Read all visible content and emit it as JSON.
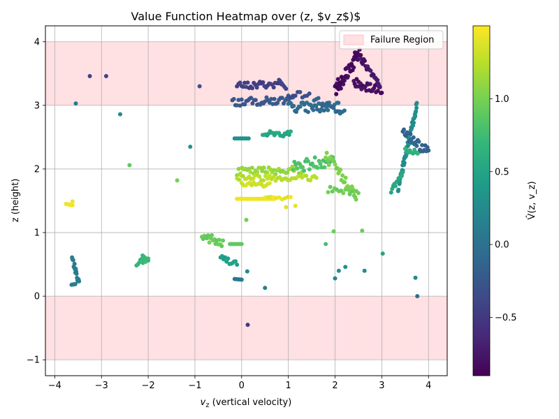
{
  "chart_data": {
    "type": "scatter",
    "title": "Value Function Heatmap over (z, $v_z$)$",
    "xlabel": "$v_z$ (vertical velocity)",
    "xlabel_display": {
      "italic": "v",
      "sub": "z",
      "rest": " (vertical velocity)"
    },
    "ylabel": "z (height)",
    "colorbar_label": "V̂(z, v_z)",
    "xlim": [
      -4.2,
      4.4
    ],
    "ylim": [
      -1.25,
      4.25
    ],
    "xticks": [
      -4,
      -3,
      -2,
      -1,
      0,
      1,
      2,
      3,
      4
    ],
    "xtick_labels": [
      "−4",
      "−3",
      "−2",
      "−1",
      "0",
      "1",
      "2",
      "3",
      "4"
    ],
    "yticks": [
      -1,
      0,
      1,
      2,
      3,
      4
    ],
    "ytick_labels": [
      "−1",
      "0",
      "1",
      "2",
      "3",
      "4"
    ],
    "grid": true,
    "colormap": "viridis",
    "clim": [
      -0.9,
      1.5
    ],
    "colorbar_ticks": [
      -0.5,
      0.0,
      0.5,
      1.0
    ],
    "colorbar_tick_labels": [
      "−0.5",
      "0.0",
      "0.5",
      "1.0"
    ],
    "legend": {
      "placement": "upper right",
      "entries": [
        "Failure Region"
      ]
    },
    "failure_regions": [
      {
        "z_min": 3.0,
        "z_max": 4.0,
        "color": "#ffe0e3"
      },
      {
        "z_min": -1.0,
        "z_max": 0.0,
        "color": "#ffe0e3"
      }
    ],
    "clusters": [
      {
        "shape": "seg",
        "from": [
          -3.76,
          1.45
        ],
        "to": [
          -3.62,
          1.43
        ],
        "n": 10,
        "v": 1.45
      },
      {
        "shape": "pt",
        "at": [
          -3.62,
          1.49
        ],
        "v": 1.45
      },
      {
        "shape": "seg",
        "from": [
          -3.63,
          0.6
        ],
        "to": [
          -3.48,
          0.2
        ],
        "n": 18,
        "w": 0.05,
        "v": 0.12
      },
      {
        "shape": "seg",
        "from": [
          -3.64,
          0.18
        ],
        "to": [
          -3.56,
          0.19
        ],
        "n": 5,
        "v": 0.15
      },
      {
        "shape": "pt",
        "at": [
          -3.55,
          3.03
        ],
        "v": 0.1
      },
      {
        "shape": "pt",
        "at": [
          -3.25,
          3.46
        ],
        "v": -0.42
      },
      {
        "shape": "pt",
        "at": [
          -2.9,
          3.46
        ],
        "v": -0.42
      },
      {
        "shape": "pt",
        "at": [
          -2.6,
          2.86
        ],
        "v": 0.22
      },
      {
        "shape": "pt",
        "at": [
          -2.4,
          2.06
        ],
        "v": 0.9
      },
      {
        "shape": "seg",
        "from": [
          -2.25,
          0.53
        ],
        "to": [
          -2.0,
          0.57
        ],
        "n": 10,
        "w": 0.05,
        "v": 0.7
      },
      {
        "shape": "seg",
        "from": [
          -2.12,
          0.64
        ],
        "to": [
          -2.0,
          0.56
        ],
        "n": 5,
        "v": 0.72
      },
      {
        "shape": "pt",
        "at": [
          -1.38,
          1.82
        ],
        "v": 1.0
      },
      {
        "shape": "pt",
        "at": [
          -1.1,
          2.35
        ],
        "v": 0.35
      },
      {
        "shape": "pt",
        "at": [
          -0.9,
          3.3
        ],
        "v": -0.3
      },
      {
        "shape": "seg",
        "from": [
          -0.85,
          0.95
        ],
        "to": [
          -0.4,
          0.82
        ],
        "n": 18,
        "w": 0.08,
        "v": 0.95
      },
      {
        "shape": "seg",
        "from": [
          -0.25,
          0.82
        ],
        "to": [
          0.0,
          0.82
        ],
        "n": 8,
        "v": 0.9
      },
      {
        "shape": "seg",
        "from": [
          -0.45,
          0.6
        ],
        "to": [
          -0.1,
          0.52
        ],
        "n": 12,
        "w": 0.05,
        "v": 0.45
      },
      {
        "shape": "seg",
        "from": [
          -0.15,
          0.27
        ],
        "to": [
          0.0,
          0.26
        ],
        "n": 6,
        "v": 0.05
      },
      {
        "shape": "pt",
        "at": [
          0.1,
          1.2
        ],
        "v": 1.0
      },
      {
        "shape": "pt",
        "at": [
          0.12,
          0.39
        ],
        "v": 0.2
      },
      {
        "shape": "pt",
        "at": [
          0.13,
          -0.45
        ],
        "v": -0.5
      },
      {
        "shape": "pt",
        "at": [
          0.5,
          0.13
        ],
        "v": 0.15
      },
      {
        "shape": "seg",
        "from": [
          -0.1,
          3.3
        ],
        "to": [
          0.85,
          3.34
        ],
        "n": 30,
        "w": 0.06,
        "v": -0.45
      },
      {
        "shape": "seg",
        "from": [
          0.8,
          3.4
        ],
        "to": [
          0.95,
          3.26
        ],
        "n": 6,
        "v": -0.4
      },
      {
        "shape": "seg",
        "from": [
          -0.2,
          3.05
        ],
        "to": [
          1.1,
          3.08
        ],
        "n": 40,
        "w": 0.06,
        "v": -0.22
      },
      {
        "shape": "seg",
        "from": [
          1.0,
          3.1
        ],
        "to": [
          1.45,
          3.22
        ],
        "n": 10,
        "w": 0.06,
        "v": -0.3
      },
      {
        "shape": "seg",
        "from": [
          1.0,
          2.98
        ],
        "to": [
          2.1,
          2.96
        ],
        "n": 40,
        "w": 0.08,
        "v": -0.05
      },
      {
        "shape": "seg",
        "from": [
          1.55,
          3.1
        ],
        "to": [
          2.2,
          2.88
        ],
        "n": 15,
        "w": 0.05,
        "v": -0.1
      },
      {
        "shape": "seg",
        "from": [
          -0.15,
          2.48
        ],
        "to": [
          0.15,
          2.48
        ],
        "n": 8,
        "v": 0.3
      },
      {
        "shape": "seg",
        "from": [
          0.45,
          2.56
        ],
        "to": [
          1.05,
          2.55
        ],
        "n": 20,
        "w": 0.04,
        "v": 0.55
      },
      {
        "shape": "seg",
        "from": [
          -0.1,
          1.96
        ],
        "to": [
          1.3,
          1.99
        ],
        "n": 40,
        "w": 0.06,
        "v": 1.12
      },
      {
        "shape": "seg",
        "from": [
          1.1,
          2.03
        ],
        "to": [
          1.95,
          2.15
        ],
        "n": 30,
        "w": 0.1,
        "v": 0.82
      },
      {
        "shape": "seg",
        "from": [
          -0.1,
          1.87
        ],
        "to": [
          1.6,
          1.86
        ],
        "n": 40,
        "w": 0.05,
        "v": 1.25
      },
      {
        "shape": "seg",
        "from": [
          0.0,
          1.77
        ],
        "to": [
          0.6,
          1.76
        ],
        "n": 15,
        "w": 0.04,
        "v": 1.35
      },
      {
        "shape": "seg",
        "from": [
          -0.1,
          1.53
        ],
        "to": [
          0.7,
          1.53
        ],
        "n": 20,
        "v": 1.45
      },
      {
        "shape": "seg",
        "from": [
          0.5,
          1.56
        ],
        "to": [
          1.05,
          1.52
        ],
        "n": 10,
        "w": 0.05,
        "v": 1.42
      },
      {
        "shape": "pt",
        "at": [
          0.95,
          1.4
        ],
        "v": 1.4
      },
      {
        "shape": "pt",
        "at": [
          1.15,
          1.42
        ],
        "v": 1.4
      },
      {
        "shape": "seg",
        "from": [
          1.8,
          2.2
        ],
        "to": [
          2.45,
          1.6
        ],
        "n": 30,
        "w": 0.09,
        "v": 1.02
      },
      {
        "shape": "seg",
        "from": [
          1.85,
          1.68
        ],
        "to": [
          2.5,
          1.62
        ],
        "n": 15,
        "w": 0.05,
        "v": 0.95
      },
      {
        "shape": "seg",
        "from": [
          2.0,
          3.25
        ],
        "to": [
          2.55,
          3.85
        ],
        "n": 45,
        "w": 0.12,
        "v": -0.85
      },
      {
        "shape": "seg",
        "from": [
          2.4,
          3.35
        ],
        "to": [
          3.0,
          3.25
        ],
        "n": 30,
        "w": 0.08,
        "v": -0.8
      },
      {
        "shape": "seg",
        "from": [
          2.55,
          3.75
        ],
        "to": [
          2.95,
          3.3
        ],
        "n": 20,
        "w": 0.06,
        "v": -0.75
      },
      {
        "shape": "seg",
        "from": [
          3.35,
          1.7
        ],
        "to": [
          3.75,
          3.0
        ],
        "n": 60,
        "w": 0.06,
        "v": 0.28
      },
      {
        "shape": "seg",
        "from": [
          3.2,
          1.66
        ],
        "to": [
          3.45,
          1.95
        ],
        "n": 12,
        "w": 0.04,
        "v": 0.55
      },
      {
        "shape": "seg",
        "from": [
          3.5,
          2.3
        ],
        "to": [
          3.8,
          2.27
        ],
        "n": 10,
        "w": 0.04,
        "v": 0.65
      },
      {
        "shape": "seg",
        "from": [
          3.45,
          2.6
        ],
        "to": [
          4.0,
          2.25
        ],
        "n": 25,
        "w": 0.08,
        "v": -0.15
      },
      {
        "shape": "pt",
        "at": [
          1.97,
          1.02
        ],
        "v": 0.95
      },
      {
        "shape": "pt",
        "at": [
          2.58,
          1.03
        ],
        "v": 0.95
      },
      {
        "shape": "pt",
        "at": [
          1.8,
          0.82
        ],
        "v": 0.8
      },
      {
        "shape": "pt",
        "at": [
          2.0,
          0.28
        ],
        "v": 0.2
      },
      {
        "shape": "pt",
        "at": [
          2.08,
          0.4
        ],
        "v": 0.25
      },
      {
        "shape": "pt",
        "at": [
          2.22,
          0.46
        ],
        "v": 0.3
      },
      {
        "shape": "pt",
        "at": [
          2.63,
          0.4
        ],
        "v": 0.25
      },
      {
        "shape": "pt",
        "at": [
          3.02,
          0.67
        ],
        "v": 0.5
      },
      {
        "shape": "pt",
        "at": [
          3.72,
          0.29
        ],
        "v": 0.2
      },
      {
        "shape": "pt",
        "at": [
          3.76,
          0.0
        ],
        "v": -0.05
      }
    ]
  }
}
